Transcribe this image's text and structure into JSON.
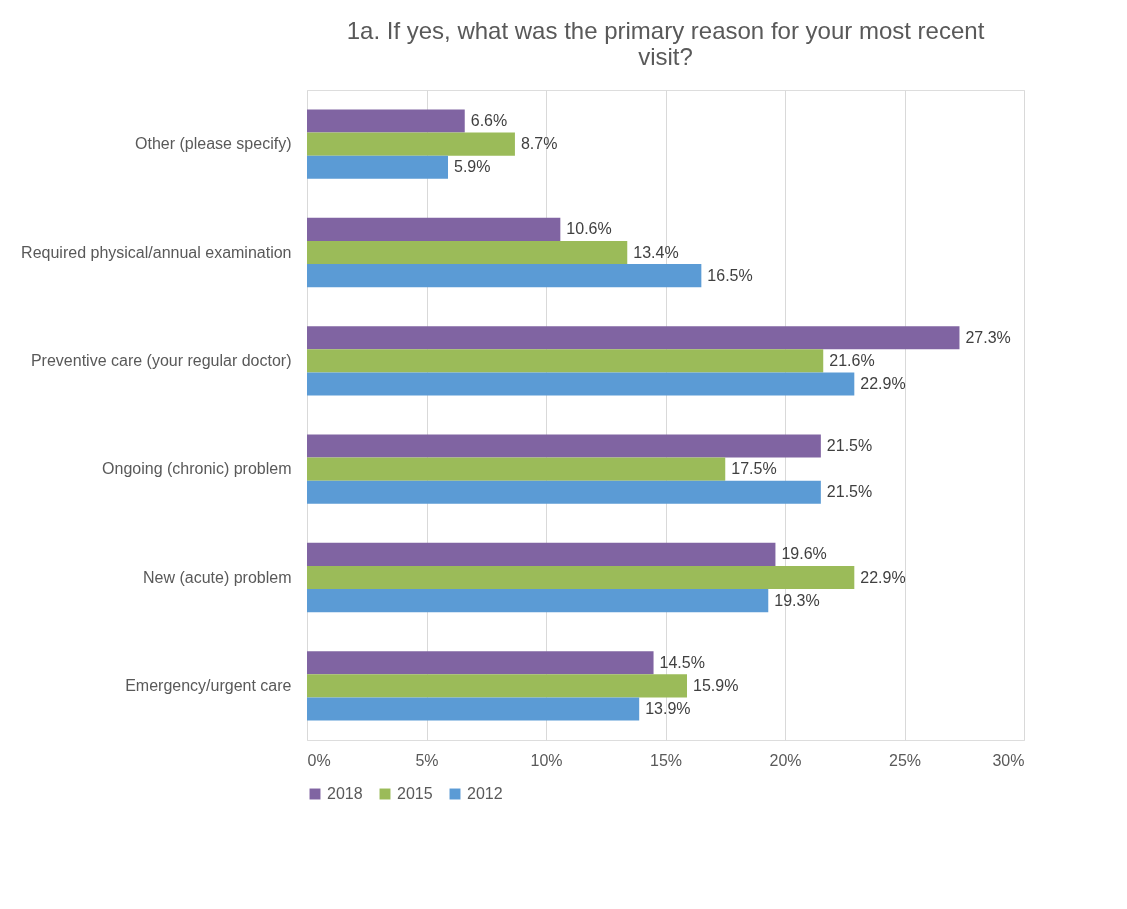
{
  "chart_data": {
    "type": "bar",
    "orientation": "horizontal",
    "title": "1a. If yes, what was the primary reason for your most recent visit?",
    "categories": [
      "Other (please specify)",
      "Required physical/annual examination",
      "Preventive care (your regular doctor)",
      "Ongoing (chronic) problem",
      "New (acute) problem",
      "Emergency/urgent care"
    ],
    "series": [
      {
        "name": "2018",
        "color": "#8064a2",
        "values": [
          6.6,
          10.6,
          27.3,
          21.5,
          19.6,
          14.5
        ],
        "value_labels": [
          "6.6%",
          "10.6%",
          "27.3%",
          "21.5%",
          "19.6%",
          "14.5%"
        ]
      },
      {
        "name": "2015",
        "color": "#9bbb59",
        "values": [
          8.7,
          13.4,
          21.6,
          17.5,
          22.9,
          15.9
        ],
        "value_labels": [
          "8.7%",
          "13.4%",
          "21.6%",
          "17.5%",
          "22.9%",
          "15.9%"
        ]
      },
      {
        "name": "2012",
        "color": "#5b9bd5",
        "values": [
          5.9,
          16.5,
          22.9,
          21.5,
          19.3,
          13.9
        ],
        "value_labels": [
          "5.9%",
          "16.5%",
          "22.9%",
          "21.5%",
          "19.3%",
          "13.9%"
        ]
      }
    ],
    "xlim": [
      0,
      30
    ],
    "xticks": [
      {
        "value": 0,
        "label": "0%"
      },
      {
        "value": 5,
        "label": "5%"
      },
      {
        "value": 10,
        "label": "10%"
      },
      {
        "value": 15,
        "label": "15%"
      },
      {
        "value": 20,
        "label": "20%"
      },
      {
        "value": 25,
        "label": "25%"
      },
      {
        "value": 30,
        "label": "30%"
      }
    ],
    "grid": "x",
    "legend": "bottom"
  }
}
